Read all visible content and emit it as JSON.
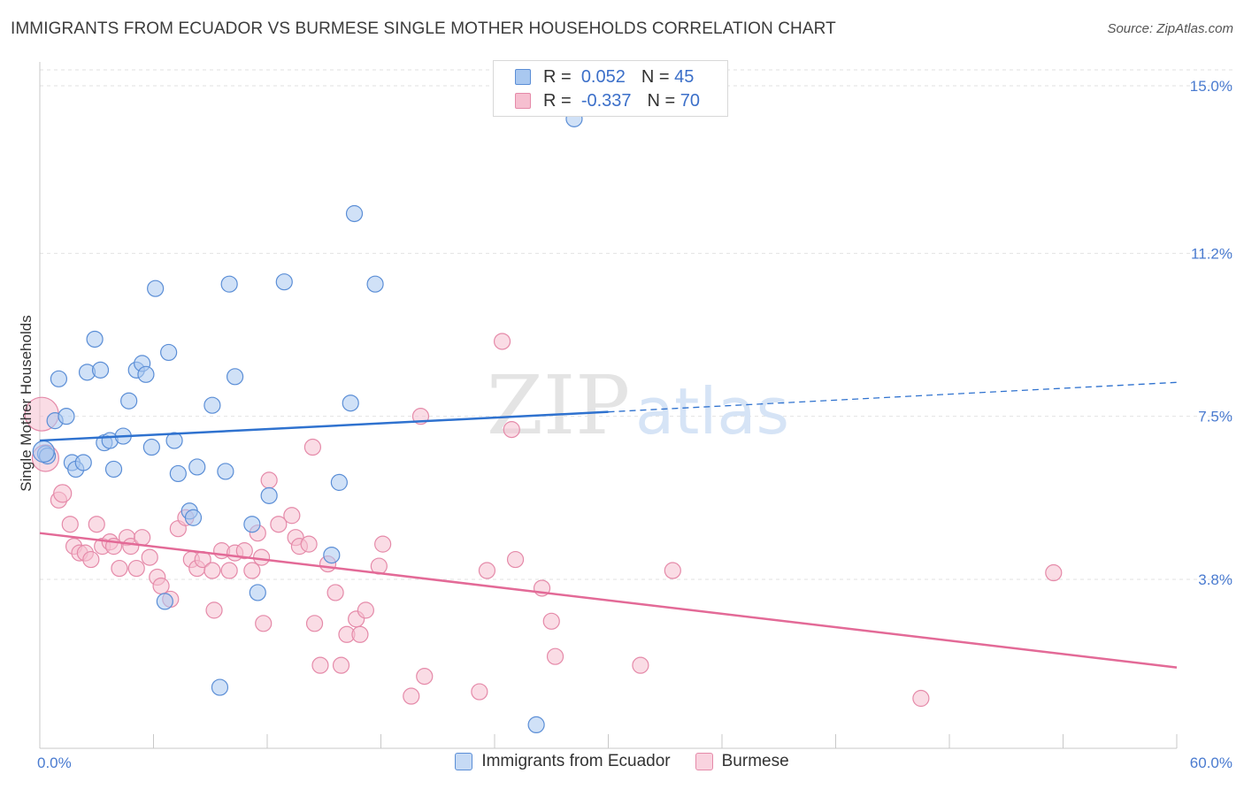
{
  "title": "IMMIGRANTS FROM ECUADOR VS BURMESE SINGLE MOTHER HOUSEHOLDS CORRELATION CHART",
  "source": "Source: ZipAtlas.com",
  "watermark": {
    "zip": "ZIP",
    "atlas": "atlas"
  },
  "colors": {
    "blue_fill": "#a9c8f0",
    "blue_stroke": "#5b8ed6",
    "blue_line": "#2f72cf",
    "pink_fill": "#f6bfd0",
    "pink_stroke": "#e58aa9",
    "pink_line": "#e36a97",
    "tick": "#4a7bd0"
  },
  "legend": {
    "items": [
      {
        "r_label": "R =",
        "r_value": "0.052",
        "n_label": "N =",
        "n_value": "45"
      },
      {
        "r_label": "R =",
        "r_value": "-0.337",
        "n_label": "N =",
        "n_value": "70"
      }
    ]
  },
  "chart_data": {
    "type": "scatter",
    "ylabel": "Single Mother Households",
    "xlim": [
      0,
      60
    ],
    "ylim": [
      0,
      15.5
    ],
    "x_ticks": [
      "0.0%",
      "60.0%"
    ],
    "y_ticks": [
      {
        "value": 15.0,
        "label": "15.0%"
      },
      {
        "value": 11.2,
        "label": "11.2%"
      },
      {
        "value": 7.5,
        "label": "7.5%"
      },
      {
        "value": 3.8,
        "label": "3.8%"
      }
    ],
    "grid": true,
    "series": [
      {
        "name": "Immigrants from Ecuador",
        "trend": {
          "x0": 0,
          "y0": 6.95,
          "x1": 30,
          "y1": 7.6,
          "dashed_to_x": 60,
          "dashed_to_y": 8.27
        },
        "points": [
          [
            0.3,
            6.65
          ],
          [
            0.4,
            6.6
          ],
          [
            0.8,
            7.4
          ],
          [
            1.0,
            8.35
          ],
          [
            1.4,
            7.5
          ],
          [
            1.7,
            6.45
          ],
          [
            1.9,
            6.3
          ],
          [
            2.3,
            6.45
          ],
          [
            2.5,
            8.5
          ],
          [
            2.9,
            9.25
          ],
          [
            3.2,
            8.55
          ],
          [
            3.4,
            6.9
          ],
          [
            3.7,
            6.95
          ],
          [
            3.9,
            6.3
          ],
          [
            4.4,
            7.05
          ],
          [
            4.7,
            7.85
          ],
          [
            5.1,
            8.55
          ],
          [
            5.4,
            8.7
          ],
          [
            5.6,
            8.45
          ],
          [
            5.9,
            6.8
          ],
          [
            6.1,
            10.4
          ],
          [
            6.6,
            3.3
          ],
          [
            6.8,
            8.95
          ],
          [
            7.1,
            6.95
          ],
          [
            7.3,
            6.2
          ],
          [
            7.9,
            5.35
          ],
          [
            8.1,
            5.2
          ],
          [
            8.3,
            6.35
          ],
          [
            9.1,
            7.75
          ],
          [
            9.5,
            1.35
          ],
          [
            9.8,
            6.25
          ],
          [
            10.0,
            10.5
          ],
          [
            10.3,
            8.4
          ],
          [
            11.2,
            5.05
          ],
          [
            11.5,
            3.5
          ],
          [
            12.1,
            5.7
          ],
          [
            12.9,
            10.55
          ],
          [
            15.4,
            4.35
          ],
          [
            15.8,
            6.0
          ],
          [
            16.4,
            7.8
          ],
          [
            16.6,
            12.1
          ],
          [
            17.7,
            10.5
          ],
          [
            26.2,
            0.5
          ],
          [
            28.2,
            14.25
          ],
          [
            0.2,
            6.7
          ]
        ]
      },
      {
        "name": "Burmese",
        "trend": {
          "x0": 0,
          "y0": 4.85,
          "x1": 60,
          "y1": 1.8
        },
        "points": [
          [
            0.1,
            7.55
          ],
          [
            0.3,
            6.55
          ],
          [
            1.0,
            5.6
          ],
          [
            1.2,
            5.75
          ],
          [
            1.6,
            5.05
          ],
          [
            1.8,
            4.55
          ],
          [
            2.1,
            4.4
          ],
          [
            2.4,
            4.4
          ],
          [
            2.7,
            4.25
          ],
          [
            3.0,
            5.05
          ],
          [
            3.3,
            4.55
          ],
          [
            3.7,
            4.65
          ],
          [
            3.9,
            4.55
          ],
          [
            4.2,
            4.05
          ],
          [
            4.6,
            4.75
          ],
          [
            4.8,
            4.55
          ],
          [
            5.1,
            4.05
          ],
          [
            5.4,
            4.75
          ],
          [
            5.8,
            4.3
          ],
          [
            6.2,
            3.85
          ],
          [
            6.4,
            3.65
          ],
          [
            6.9,
            3.35
          ],
          [
            7.3,
            4.95
          ],
          [
            7.7,
            5.2
          ],
          [
            8.0,
            4.25
          ],
          [
            8.3,
            4.05
          ],
          [
            8.6,
            4.25
          ],
          [
            9.1,
            4.0
          ],
          [
            9.2,
            3.1
          ],
          [
            9.6,
            4.45
          ],
          [
            10.0,
            4.0
          ],
          [
            10.3,
            4.4
          ],
          [
            10.8,
            4.45
          ],
          [
            11.2,
            4.0
          ],
          [
            11.5,
            4.85
          ],
          [
            11.7,
            4.3
          ],
          [
            11.8,
            2.8
          ],
          [
            12.1,
            6.05
          ],
          [
            12.6,
            5.05
          ],
          [
            13.3,
            5.25
          ],
          [
            13.5,
            4.75
          ],
          [
            13.7,
            4.55
          ],
          [
            14.2,
            4.6
          ],
          [
            14.4,
            6.8
          ],
          [
            14.5,
            2.8
          ],
          [
            14.8,
            1.85
          ],
          [
            15.2,
            4.15
          ],
          [
            15.6,
            3.5
          ],
          [
            15.9,
            1.85
          ],
          [
            16.2,
            2.55
          ],
          [
            16.7,
            2.9
          ],
          [
            16.9,
            2.55
          ],
          [
            17.2,
            3.1
          ],
          [
            17.9,
            4.1
          ],
          [
            18.1,
            4.6
          ],
          [
            19.6,
            1.15
          ],
          [
            20.1,
            7.5
          ],
          [
            20.3,
            1.6
          ],
          [
            23.2,
            1.25
          ],
          [
            23.6,
            4.0
          ],
          [
            24.4,
            9.2
          ],
          [
            24.9,
            7.2
          ],
          [
            25.1,
            4.25
          ],
          [
            26.5,
            3.6
          ],
          [
            27.0,
            2.85
          ],
          [
            27.2,
            2.05
          ],
          [
            31.7,
            1.85
          ],
          [
            33.4,
            4.0
          ],
          [
            46.5,
            1.1
          ],
          [
            53.5,
            3.95
          ]
        ]
      }
    ]
  }
}
